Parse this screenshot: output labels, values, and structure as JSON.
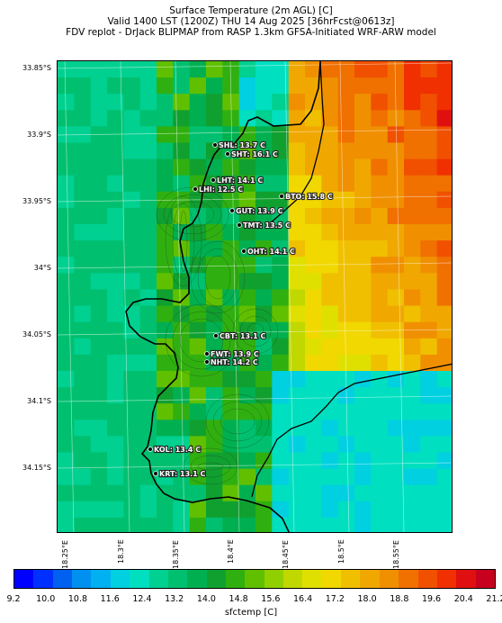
{
  "header": {
    "line1": "Surface Temperature (2m AGL) [C]",
    "line2": "Valid 1400 LST (1200Z) THU 14 Aug 2025 [36hrFcst@0613z]",
    "line3": "FDV replot - DrJack BLIPMAP from RASP 1.3km GFSA-Initiated WRF-ARW model"
  },
  "lat_labels": [
    "33.85°S",
    "33.9°S",
    "33.95°S",
    "34°S",
    "34.05°S",
    "34.1°S",
    "34.15°S"
  ],
  "lon_labels": [
    "18.25°E",
    "18.3°E",
    "18.35°E",
    "18.4°E",
    "18.45°E",
    "18.5°E",
    "18.55°E"
  ],
  "sites": [
    {
      "label": "SHL: 13.7 C"
    },
    {
      "label": "SHT: 16.1 C"
    },
    {
      "label": "LHT: 14.1 C"
    },
    {
      "label": "LHI: 12.5 C"
    },
    {
      "label": "BTO: 15.8 C"
    },
    {
      "label": "GUT: 13.9 C"
    },
    {
      "label": "TMT: 13.5 C"
    },
    {
      "label": "OHT: 14.1 C"
    },
    {
      "label": "CBT: 13.1 C"
    },
    {
      "label": "FWT: 13.9 C"
    },
    {
      "label": "NHT: 14.2 C"
    },
    {
      "label": "KOL: 13.4 C"
    },
    {
      "label": "KRT: 13.1 C"
    }
  ],
  "colorbar": {
    "label": "sfctemp [C]",
    "ticks": [
      "9.2",
      "10.0",
      "10.8",
      "11.6",
      "12.4",
      "13.2",
      "14.0",
      "14.8",
      "15.6",
      "16.4",
      "17.2",
      "18.0",
      "18.8",
      "19.6",
      "20.4",
      "21.2"
    ],
    "colors": [
      "#0000ff",
      "#0030ff",
      "#0060f0",
      "#0090f0",
      "#00b0f0",
      "#00d0e0",
      "#00e0c0",
      "#00d090",
      "#00c070",
      "#00b050",
      "#10a030",
      "#30b010",
      "#60c000",
      "#90d000",
      "#c0d800",
      "#e0e000",
      "#f0d800",
      "#f0c000",
      "#f0a800",
      "#f09000",
      "#f07000",
      "#f05000",
      "#f03000",
      "#e01010",
      "#c80020"
    ]
  }
}
